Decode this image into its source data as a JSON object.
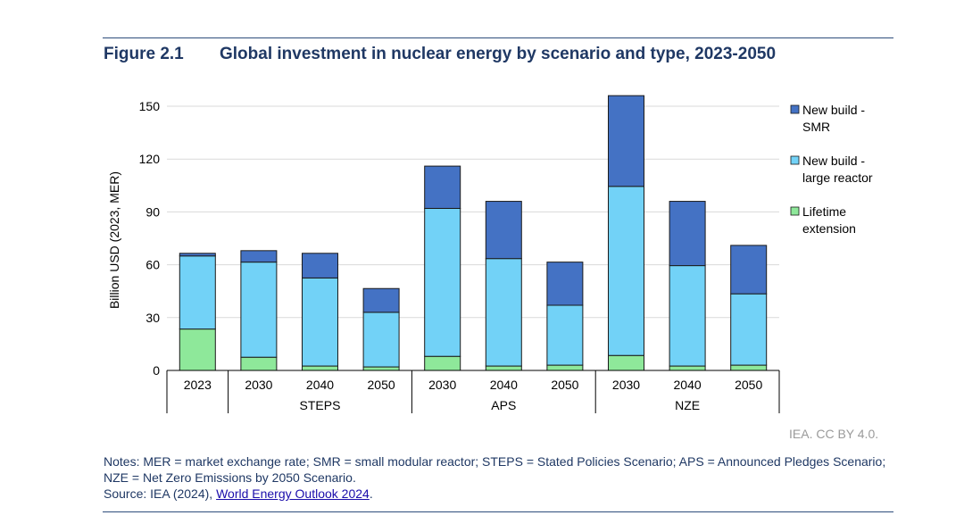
{
  "figure": {
    "number": "Figure 2.1",
    "title": "Global investment in nuclear energy by scenario and type, 2023-2050",
    "credit": "IEA. CC BY 4.0.",
    "notes": "Notes: MER = market exchange rate; SMR = small modular reactor; STEPS = Stated Policies Scenario; APS = Announced Pledges Scenario; NZE = Net Zero Emissions by 2050 Scenario.",
    "source_prefix": "Source: IEA (2024), ",
    "source_link": "World Energy Outlook 2024",
    "source_suffix": "."
  },
  "chart_data": {
    "type": "bar",
    "stacked": true,
    "ylabel": "Billion USD (2023, MER)",
    "ylim": [
      0,
      150
    ],
    "yticks": [
      0,
      30,
      60,
      90,
      120,
      150
    ],
    "yticklabels": [
      "0",
      "30",
      "60",
      "90",
      "120",
      "150"
    ],
    "grid": true,
    "legend_position": "right",
    "categories": [
      "2023",
      "2030",
      "2040",
      "2050",
      "2030",
      "2040",
      "2050",
      "2030",
      "2040",
      "2050"
    ],
    "groups": [
      {
        "label": "",
        "start": 0,
        "end": 0
      },
      {
        "label": "STEPS",
        "start": 1,
        "end": 3
      },
      {
        "label": "APS",
        "start": 4,
        "end": 6
      },
      {
        "label": "NZE",
        "start": 7,
        "end": 9
      }
    ],
    "series": [
      {
        "name": "Lifetime extension",
        "color": "#8ee89a",
        "values": [
          23.5,
          7.5,
          2.5,
          2,
          8,
          2.5,
          3,
          8.5,
          2.5,
          3
        ]
      },
      {
        "name": "New build - large reactor",
        "color": "#72d2f7",
        "values": [
          41.5,
          54,
          50,
          31,
          84,
          61,
          34,
          96,
          57,
          40.5
        ]
      },
      {
        "name": "New build - SMR",
        "color": "#4472c4",
        "values": [
          1.5,
          6.5,
          14,
          13.5,
          24,
          32.5,
          24.5,
          51.5,
          36.5,
          27.5
        ]
      }
    ],
    "legend": [
      {
        "lines": [
          "New build -",
          "SMR"
        ],
        "color": "#4472c4"
      },
      {
        "lines": [
          "New build -",
          "large reactor"
        ],
        "color": "#72d2f7"
      },
      {
        "lines": [
          "Lifetime",
          "extension"
        ],
        "color": "#8ee89a"
      }
    ]
  }
}
